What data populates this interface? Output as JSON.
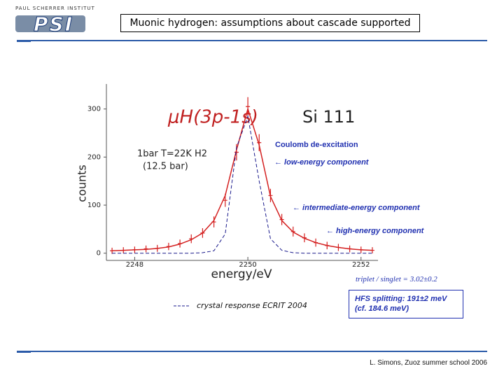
{
  "header": {
    "institute": "PAUL SCHERRER INSTITUT",
    "logo": "PSI",
    "title": "Muonic hydrogen: assumptions about cascade supported"
  },
  "chart_data": {
    "type": "scatter",
    "title": "μH(3p-1s)",
    "crystal": "Si 111",
    "conditions": [
      "1bar T=22K H2",
      "(12.5 bar)"
    ],
    "x_label": "energy/eV",
    "y_label": "counts",
    "x": [
      2247.6,
      2247.8,
      2248.0,
      2248.2,
      2248.4,
      2248.6,
      2248.8,
      2249.0,
      2249.2,
      2249.4,
      2249.6,
      2249.8,
      2250.0,
      2250.2,
      2250.4,
      2250.6,
      2250.8,
      2251.0,
      2251.2,
      2251.4,
      2251.6,
      2251.8,
      2252.0,
      2252.2
    ],
    "series": [
      {
        "color": "#d42020",
        "style": "points",
        "values": [
          5,
          6,
          7,
          9,
          10,
          14,
          20,
          30,
          42,
          65,
          110,
          210,
          305,
          230,
          120,
          70,
          45,
          32,
          22,
          16,
          12,
          9,
          7,
          6
        ]
      },
      {
        "color": "#d42020",
        "style": "line",
        "values": [
          5,
          6,
          7,
          8,
          10,
          13,
          19,
          28,
          42,
          68,
          120,
          215,
          300,
          225,
          118,
          68,
          44,
          31,
          22,
          16,
          12,
          9,
          7,
          6
        ]
      },
      {
        "name": "crystal response ECRIT 2004",
        "color": "#1a1a8c",
        "style": "dashed",
        "values": [
          0,
          0,
          0,
          0,
          0,
          0,
          0,
          0,
          1,
          5,
          40,
          220,
          285,
          150,
          30,
          6,
          1,
          0,
          0,
          0,
          0,
          0,
          0,
          0
        ]
      }
    ],
    "xlim": [
      2247.5,
      2252.3
    ],
    "ylim": [
      -15,
      352
    ],
    "xticks": [
      2248,
      2250,
      2252
    ],
    "yticks": [
      0,
      100,
      200,
      300
    ]
  },
  "annotations": {
    "coulomb": "Coulomb de-excitation",
    "low": "←  low-energy component",
    "intermediate": "←  intermediate-energy component",
    "high": "←  high-energy component",
    "ratio": "triplet / singlet = 3.02±0.2",
    "legend_dashes": "-----",
    "hfs": [
      "HFS splitting: 191±2 meV",
      "(cf.  184.6 meV)"
    ]
  },
  "footer": "L. Simons,  Zuoz summer school 2006"
}
